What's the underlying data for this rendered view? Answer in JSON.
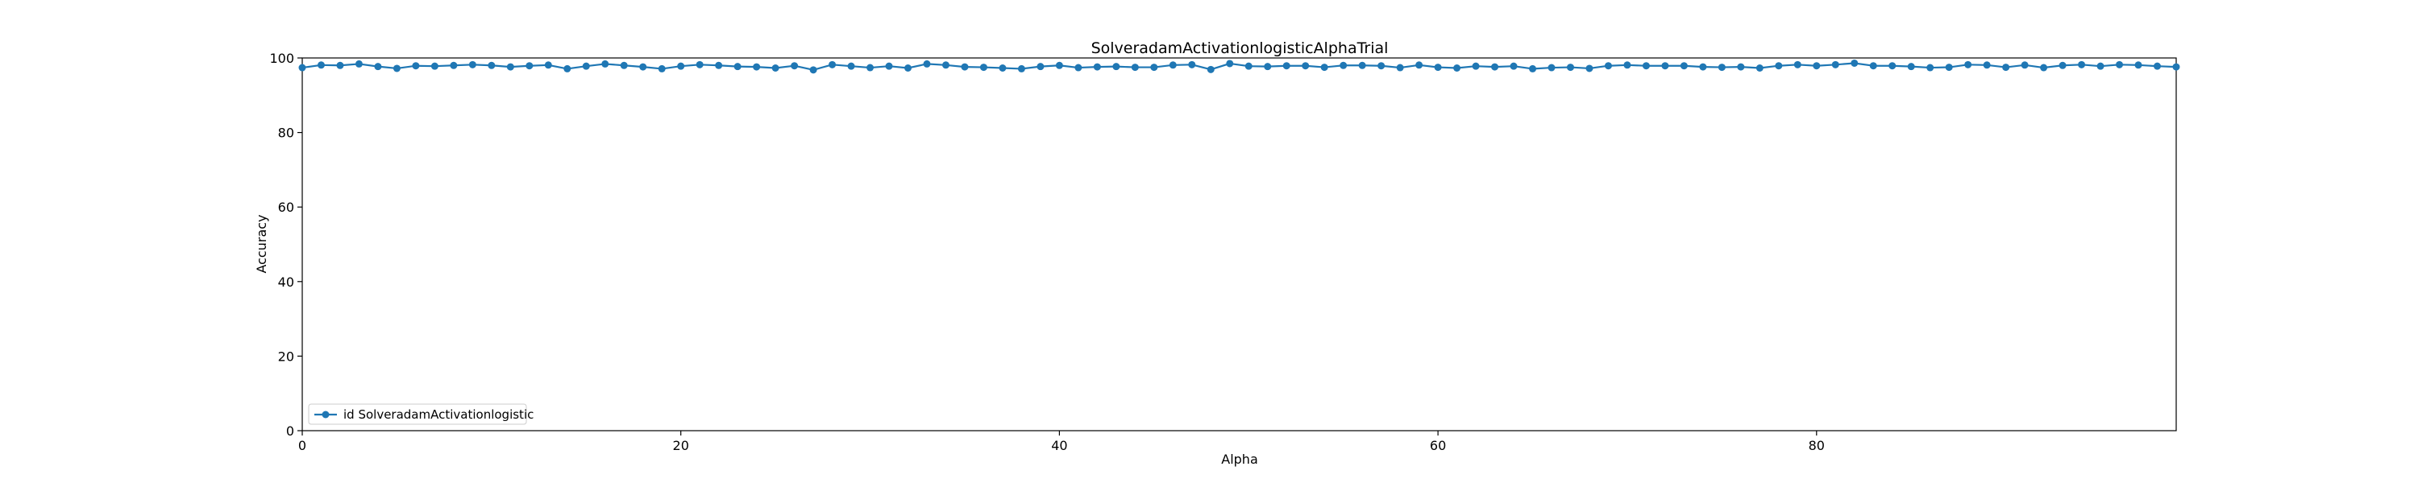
{
  "chart_data": {
    "type": "line",
    "title": "SolveradamActivationlogisticAlphaTrial",
    "xlabel": "Alpha",
    "ylabel": "Accuracy",
    "xlim": [
      0,
      99
    ],
    "ylim": [
      0,
      100
    ],
    "xticks": [
      0,
      20,
      40,
      60,
      80
    ],
    "yticks": [
      0,
      20,
      40,
      60,
      80,
      100
    ],
    "grid": false,
    "legend_position": "lower-left",
    "series": [
      {
        "name": "id SolveradamActivationlogistic",
        "color": "#1f77b4",
        "marker": "circle",
        "x": [
          0,
          1,
          2,
          3,
          4,
          5,
          6,
          7,
          8,
          9,
          10,
          11,
          12,
          13,
          14,
          15,
          16,
          17,
          18,
          19,
          20,
          21,
          22,
          23,
          24,
          25,
          26,
          27,
          28,
          29,
          30,
          31,
          32,
          33,
          34,
          35,
          36,
          37,
          38,
          39,
          40,
          41,
          42,
          43,
          44,
          45,
          46,
          47,
          48,
          49,
          50,
          51,
          52,
          53,
          54,
          55,
          56,
          57,
          58,
          59,
          60,
          61,
          62,
          63,
          64,
          65,
          66,
          67,
          68,
          69,
          70,
          71,
          72,
          73,
          74,
          75,
          76,
          77,
          78,
          79,
          80,
          81,
          82,
          83,
          84,
          85,
          86,
          87,
          88,
          89,
          90,
          91,
          92,
          93,
          94,
          95,
          96,
          97,
          98,
          99
        ],
        "values": [
          97.4,
          98.1,
          98.0,
          98.4,
          97.7,
          97.2,
          97.9,
          97.8,
          98.0,
          98.2,
          98.0,
          97.6,
          97.9,
          98.1,
          97.1,
          97.8,
          98.4,
          98.0,
          97.6,
          97.1,
          97.8,
          98.2,
          98.0,
          97.7,
          97.6,
          97.3,
          97.9,
          96.8,
          98.2,
          97.8,
          97.4,
          97.8,
          97.3,
          98.4,
          98.1,
          97.6,
          97.5,
          97.3,
          97.1,
          97.7,
          98.0,
          97.4,
          97.6,
          97.7,
          97.5,
          97.5,
          98.1,
          98.2,
          96.9,
          98.5,
          97.8,
          97.7,
          97.9,
          97.9,
          97.5,
          98.0,
          98.0,
          97.9,
          97.4,
          98.1,
          97.5,
          97.3,
          97.8,
          97.6,
          97.8,
          97.1,
          97.4,
          97.5,
          97.2,
          97.9,
          98.1,
          97.9,
          97.9,
          97.9,
          97.6,
          97.5,
          97.6,
          97.3,
          97.9,
          98.2,
          97.9,
          98.2,
          98.6,
          97.9,
          97.9,
          97.7,
          97.4,
          97.5,
          98.2,
          98.1,
          97.5,
          98.1,
          97.4,
          98.0,
          98.2,
          97.8,
          98.2,
          98.1,
          97.8,
          97.6
        ]
      }
    ]
  }
}
